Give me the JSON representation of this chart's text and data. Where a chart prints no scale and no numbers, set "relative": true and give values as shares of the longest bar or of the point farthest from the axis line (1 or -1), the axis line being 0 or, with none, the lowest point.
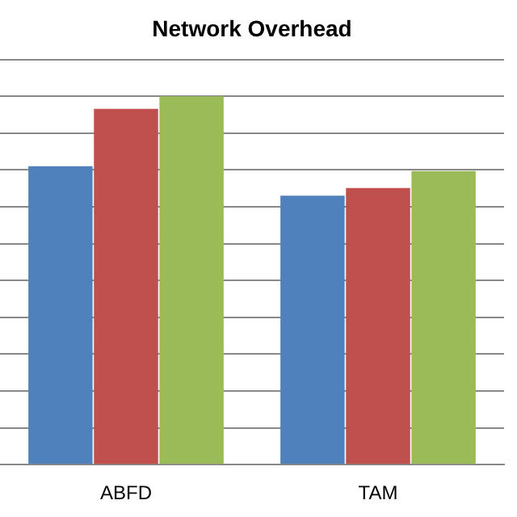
{
  "chart_data": {
    "type": "bar",
    "title": "Network Overhead",
    "relative": true,
    "grid": "y",
    "legend": false,
    "categories": [
      "ABFD",
      "TAM"
    ],
    "series": [
      {
        "color": "#4f81bd",
        "values": [
          0.81,
          0.73
        ]
      },
      {
        "color": "#c0504d",
        "values": [
          0.966,
          0.751
        ]
      },
      {
        "color": "#9bbb59",
        "values": [
          1,
          0.797
        ]
      }
    ]
  }
}
